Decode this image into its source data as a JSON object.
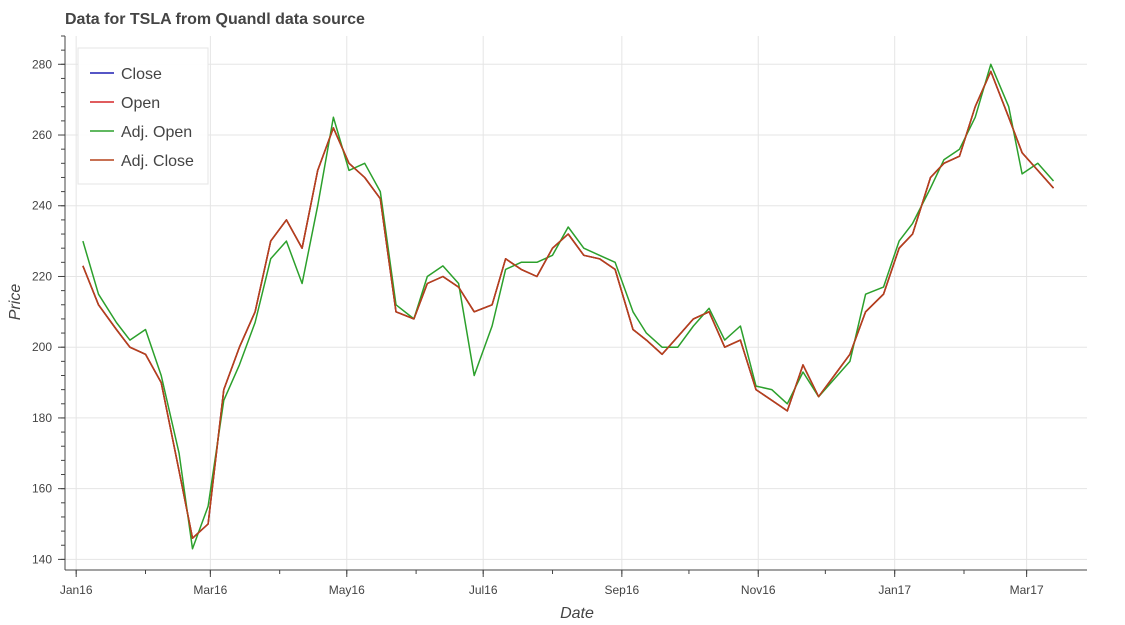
{
  "chart_data": {
    "type": "line",
    "title": "Data for TSLA from Quandl data source",
    "xlabel": "Date",
    "ylabel": "Price",
    "x_type": "date",
    "xlim": [
      "2015-12-27",
      "2017-03-28"
    ],
    "ylim": [
      137,
      288
    ],
    "x_ticks": [
      {
        "date": "2016-01-01",
        "label": "Jan16"
      },
      {
        "date": "2016-03-01",
        "label": "Mar16"
      },
      {
        "date": "2016-05-01",
        "label": "May16"
      },
      {
        "date": "2016-07-01",
        "label": "Jul16"
      },
      {
        "date": "2016-09-01",
        "label": "Sep16"
      },
      {
        "date": "2016-11-01",
        "label": "Nov16"
      },
      {
        "date": "2017-01-01",
        "label": "Jan17"
      },
      {
        "date": "2017-03-01",
        "label": "Mar17"
      }
    ],
    "y_ticks": [
      140,
      160,
      180,
      200,
      220,
      240,
      260,
      280
    ],
    "grid": true,
    "legend_position": "top-left",
    "dates": [
      "2016-01-04",
      "2016-01-11",
      "2016-01-19",
      "2016-01-25",
      "2016-02-01",
      "2016-02-08",
      "2016-02-16",
      "2016-02-22",
      "2016-02-29",
      "2016-03-07",
      "2016-03-14",
      "2016-03-21",
      "2016-03-28",
      "2016-04-04",
      "2016-04-11",
      "2016-04-18",
      "2016-04-25",
      "2016-05-02",
      "2016-05-09",
      "2016-05-16",
      "2016-05-23",
      "2016-05-31",
      "2016-06-06",
      "2016-06-13",
      "2016-06-20",
      "2016-06-27",
      "2016-07-05",
      "2016-07-11",
      "2016-07-18",
      "2016-07-25",
      "2016-08-01",
      "2016-08-08",
      "2016-08-15",
      "2016-08-22",
      "2016-08-29",
      "2016-09-06",
      "2016-09-12",
      "2016-09-19",
      "2016-09-26",
      "2016-10-03",
      "2016-10-10",
      "2016-10-17",
      "2016-10-24",
      "2016-10-31",
      "2016-11-07",
      "2016-11-14",
      "2016-11-21",
      "2016-11-28",
      "2016-12-05",
      "2016-12-12",
      "2016-12-19",
      "2016-12-27",
      "2017-01-03",
      "2017-01-09",
      "2017-01-17",
      "2017-01-23",
      "2017-01-30",
      "2017-02-06",
      "2017-02-13",
      "2017-02-21",
      "2017-02-27",
      "2017-03-06",
      "2017-03-13"
    ],
    "series": [
      {
        "name": "Close",
        "color": "#1f1fb4",
        "values": [
          223,
          212,
          205,
          200,
          198,
          190,
          165,
          146,
          150,
          188,
          200,
          210,
          230,
          236,
          228,
          250,
          262,
          252,
          248,
          242,
          210,
          208,
          218,
          220,
          217,
          210,
          212,
          225,
          222,
          220,
          228,
          232,
          226,
          225,
          222,
          205,
          202,
          198,
          203,
          208,
          210,
          200,
          202,
          188,
          185,
          182,
          195,
          186,
          192,
          198,
          210,
          215,
          228,
          232,
          248,
          252,
          254,
          268,
          278,
          265,
          255,
          250,
          245
        ]
      },
      {
        "name": "Open",
        "color": "#d62728",
        "values": [
          223,
          212,
          205,
          200,
          198,
          190,
          165,
          146,
          150,
          188,
          200,
          210,
          230,
          236,
          228,
          250,
          262,
          252,
          248,
          242,
          210,
          208,
          218,
          220,
          217,
          210,
          212,
          225,
          222,
          220,
          228,
          232,
          226,
          225,
          222,
          205,
          202,
          198,
          203,
          208,
          210,
          200,
          202,
          188,
          185,
          182,
          195,
          186,
          192,
          198,
          210,
          215,
          228,
          232,
          248,
          252,
          254,
          268,
          278,
          265,
          255,
          250,
          245
        ]
      },
      {
        "name": "Adj. Open",
        "color": "#2ca02c",
        "values": [
          230,
          215,
          207,
          202,
          205,
          192,
          170,
          143,
          155,
          185,
          195,
          207,
          225,
          230,
          218,
          240,
          265,
          250,
          252,
          244,
          212,
          208,
          220,
          223,
          218,
          192,
          206,
          222,
          224,
          224,
          226,
          234,
          228,
          226,
          224,
          210,
          204,
          200,
          200,
          206,
          211,
          202,
          206,
          189,
          188,
          184,
          193,
          186,
          191,
          196,
          215,
          217,
          230,
          235,
          245,
          253,
          256,
          265,
          280,
          268,
          249,
          252,
          247
        ]
      },
      {
        "name": "Adj. Close",
        "color": "#b5421a",
        "values": [
          223,
          212,
          205,
          200,
          198,
          190,
          165,
          146,
          150,
          188,
          200,
          210,
          230,
          236,
          228,
          250,
          262,
          252,
          248,
          242,
          210,
          208,
          218,
          220,
          217,
          210,
          212,
          225,
          222,
          220,
          228,
          232,
          226,
          225,
          222,
          205,
          202,
          198,
          203,
          208,
          210,
          200,
          202,
          188,
          185,
          182,
          195,
          186,
          192,
          198,
          210,
          215,
          228,
          232,
          248,
          252,
          254,
          268,
          278,
          265,
          255,
          250,
          245
        ]
      }
    ]
  }
}
